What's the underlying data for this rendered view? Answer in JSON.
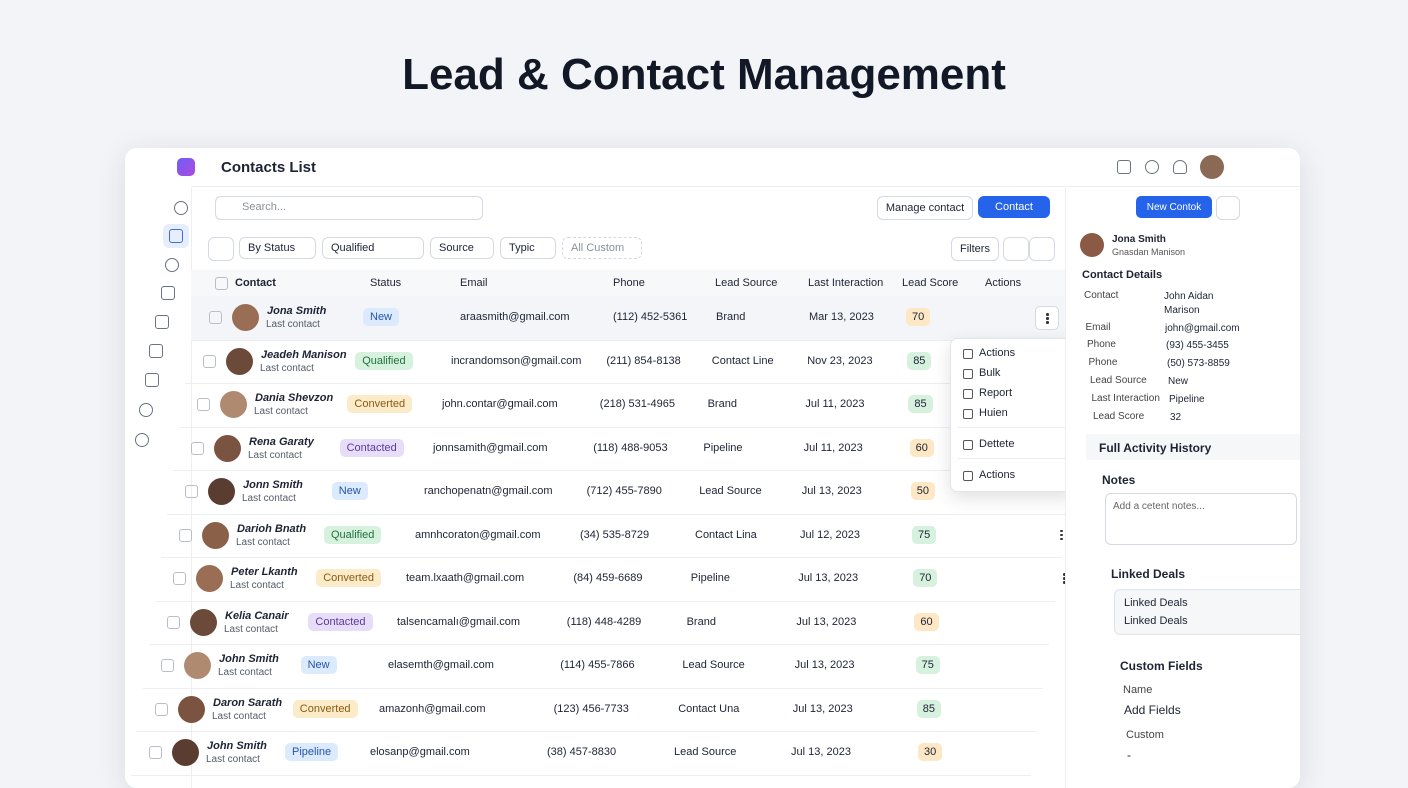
{
  "page_title": "Lead & Contact Management",
  "header": {
    "title": "Contacts List"
  },
  "toolbar": {
    "search_placeholder": "Search...",
    "manage_button": "Manage contact",
    "add_button": "Contact"
  },
  "filters": {
    "items": [
      "By Status",
      "Qualified",
      "Source",
      "Typic",
      "All Custom"
    ],
    "button": "Filters"
  },
  "table": {
    "headers": [
      "Contact",
      "Status",
      "Email",
      "Phone",
      "Lead Source",
      "Last Interaction",
      "Lead Score",
      "Actions"
    ],
    "status_colors": {
      "New": {
        "bg": "#dceafd",
        "fg": "#2456a8"
      },
      "Qualified": {
        "bg": "#d6f1dd",
        "fg": "#23703c"
      },
      "Converted": {
        "bg": "#fcebc9",
        "fg": "#8a5a12"
      },
      "Contacted": {
        "bg": "#e8ddf9",
        "fg": "#5b3a9c"
      },
      "Pipeline": {
        "bg": "#dceafd",
        "fg": "#2456a8"
      }
    },
    "rows": [
      {
        "name": "Jona Smith",
        "subtitle": "Last contact",
        "status": "New",
        "email": "araasmith@gmail.com",
        "phone": "(112) 452-5361",
        "source": "Brand",
        "last_interaction": "Mar 13, 2023",
        "score": 70,
        "score_color": "#fde7c4"
      },
      {
        "name": "Jeadeh Manison",
        "subtitle": "Last contact",
        "status": "Qualified",
        "email": "incrandomson@gmail.com",
        "phone": "(211) 854-8138",
        "source": "Contact Line",
        "last_interaction": "Nov 23, 2023",
        "score": 85,
        "score_color": "#d6f1dd"
      },
      {
        "name": "Dania Shevzon",
        "subtitle": "Last contact",
        "status": "Converted",
        "email": "john.contar@gmail.com",
        "phone": "(218) 531-4965",
        "source": "Brand",
        "last_interaction": "Jul 11, 2023",
        "score": 85,
        "score_color": "#d6f1dd"
      },
      {
        "name": "Rena Garaty",
        "subtitle": "Last contact",
        "status": "Contacted",
        "email": "jonnsamith@gmail.com",
        "phone": "(118) 488-9053",
        "source": "Pipeline",
        "last_interaction": "Jul 11, 2023",
        "score": 60,
        "score_color": "#fde7c4"
      },
      {
        "name": "Jonn Smith",
        "subtitle": "Last contact",
        "status": "New",
        "email": "ranchopenatn@gmail.com",
        "phone": "(712) 455-7890",
        "source": "Lead Source",
        "last_interaction": "Jul 13, 2023",
        "score": 50,
        "score_color": "#fde7c4"
      },
      {
        "name": "Darioh Bnath",
        "subtitle": "Last contact",
        "status": "Qualified",
        "email": "amnhcoraton@gmail.com",
        "phone": "(34) 535-8729",
        "source": "Contact Lina",
        "last_interaction": "Jul 12, 2023",
        "score": 75,
        "score_color": "#d6f1dd"
      },
      {
        "name": "Peter Lkanth",
        "subtitle": "Last contact",
        "status": "Converted",
        "email": "team.lxaath@gmail.com",
        "phone": "(84) 459-6689",
        "source": "Pipeline",
        "last_interaction": "Jul 13, 2023",
        "score": 70,
        "score_color": "#d6f1dd"
      },
      {
        "name": "Kelia Canair",
        "subtitle": "Last contact",
        "status": "Contacted",
        "email": "talsencamalı@gmail.com",
        "phone": "(118) 448-4289",
        "source": "Brand",
        "last_interaction": "Jul 13, 2023",
        "score": 60,
        "score_color": "#fde7c4"
      },
      {
        "name": "John Smith",
        "subtitle": "Last contact",
        "status": "New",
        "email": "elasemth@gmail.com",
        "phone": "(114) 455-7866",
        "source": "Lead Source",
        "last_interaction": "Jul 13, 2023",
        "score": 75,
        "score_color": "#d6f1dd"
      },
      {
        "name": "Daron Sarath",
        "subtitle": "Last contact",
        "status": "Converted",
        "email": "amazonh@gmail.com",
        "phone": "(123) 456-7733",
        "source": "Contact Una",
        "last_interaction": "Jul 13, 2023",
        "score": 85,
        "score_color": "#d6f1dd"
      },
      {
        "name": "John Smith",
        "subtitle": "Last contact",
        "status": "Pipeline",
        "email": "elosanp@gmail.com",
        "phone": "(38) 457-8830",
        "source": "Lead Source",
        "last_interaction": "Jul 13, 2023",
        "score": 30,
        "score_color": "#fde7c4"
      }
    ]
  },
  "menu": {
    "items": [
      "Actions",
      "Bulk",
      "Report",
      "Huien",
      "Dettete",
      "Actions"
    ]
  },
  "panel": {
    "new_button": "New Contok",
    "profile": {
      "name": "Jona Smith",
      "subtitle": "Gnasdan Manison"
    },
    "details_title": "Contact Details",
    "fields": [
      {
        "label": "Contact",
        "value": "John Aidan Marison"
      },
      {
        "label": "Email",
        "value": "john@gmail.com"
      },
      {
        "label": "Phone",
        "value": "(93) 455-3455"
      },
      {
        "label": "Phone",
        "value": "(50) 573-8859"
      },
      {
        "label": "Lead Source",
        "value": "New"
      },
      {
        "label": "Last Interaction",
        "value": "Pipeline"
      },
      {
        "label": "Lead Score",
        "value": "32"
      }
    ],
    "activity_title": "Full Activity History",
    "notes_title": "Notes",
    "notes_placeholder": "Add a cetent notes...",
    "deals_title": "Linked Deals",
    "deals_items": [
      "Linked Deals",
      "Linked Deals"
    ],
    "custom_title": "Custom Fields",
    "custom_fields": [
      {
        "label": "Name",
        "value": "Add Fields"
      },
      {
        "label": "Custom",
        "value": "-"
      }
    ]
  }
}
